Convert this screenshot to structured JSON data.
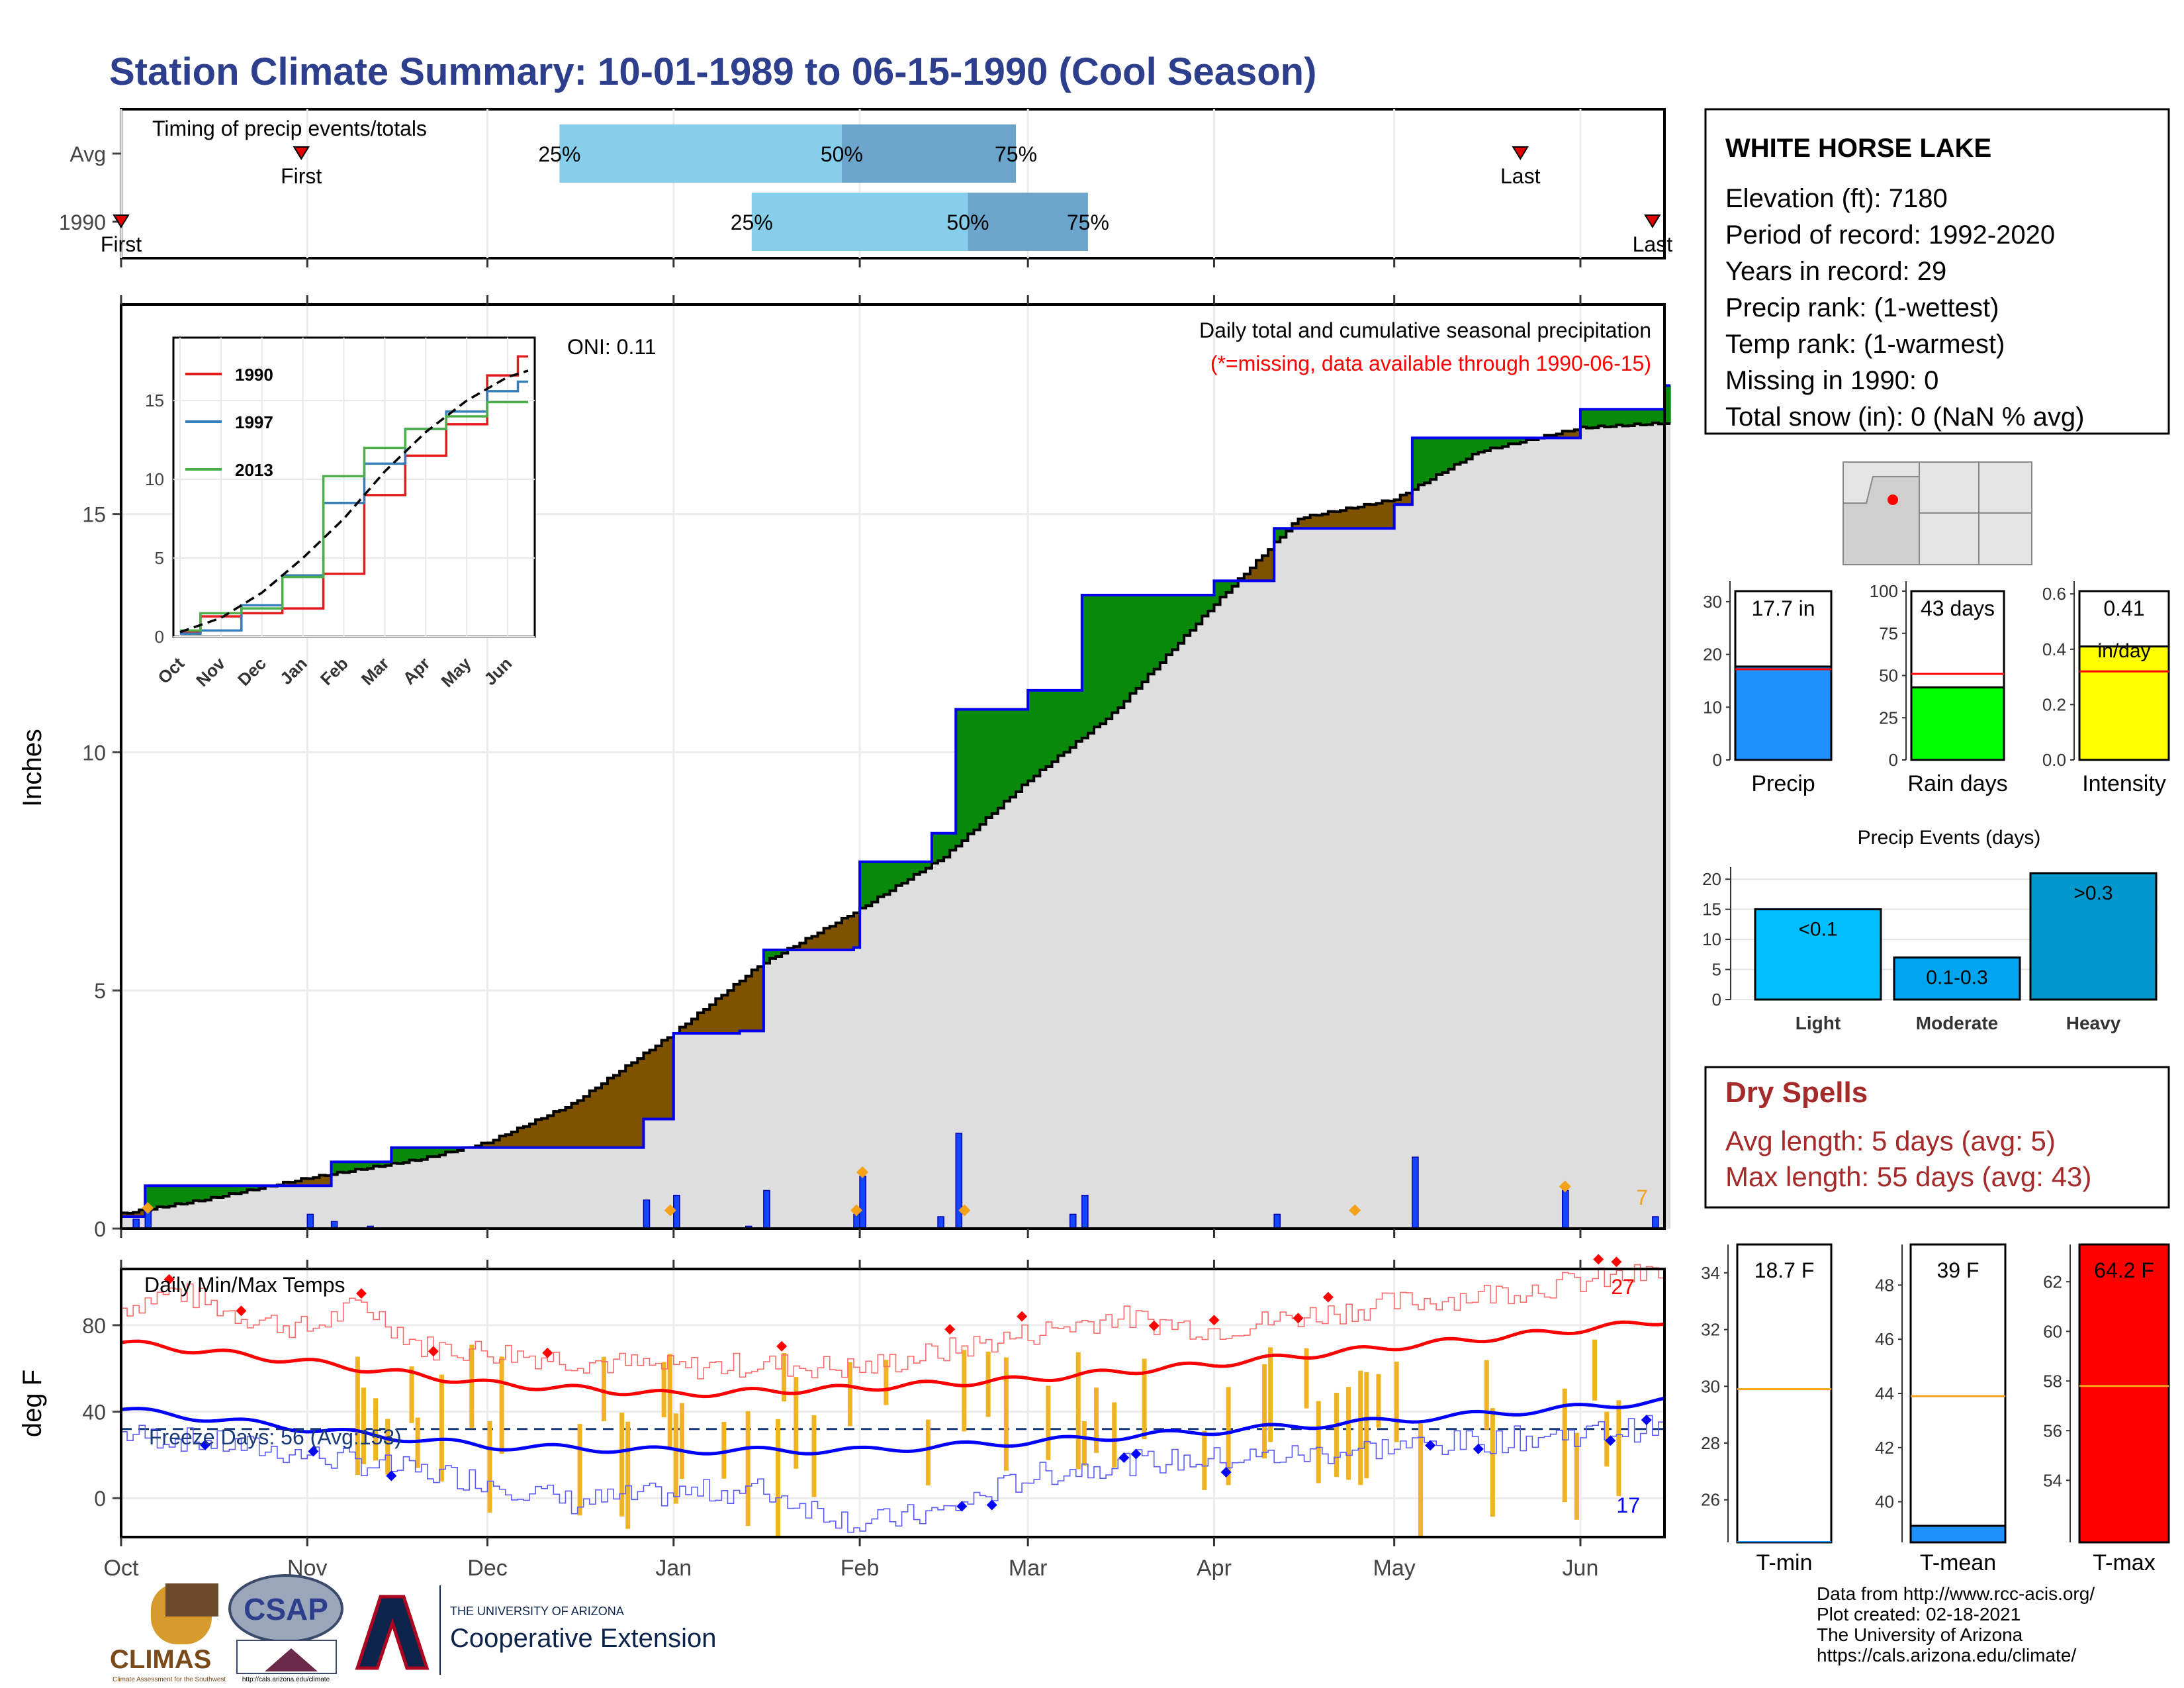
{
  "title": "Station Climate Summary: 10-01-1989 to 06-15-1990 (Cool Season)",
  "colors": {
    "title": "#2d3f8c",
    "cum_fill": "#dedede",
    "deficit": "#7f5200",
    "surplus": "#0a8a0a",
    "avg_line": "#0000ee",
    "bar_blue": "#1246ff",
    "marker_orange": "#f3a21a",
    "tmax": "#ff0000",
    "tmin": "#0000ff",
    "freeze_bar": "#f0b323",
    "dryspell": "#a52a2a",
    "q_light": "#87ceeb",
    "q_dark": "#6ca5cc"
  },
  "timing": {
    "label": "Timing of precip events/totals",
    "rows": [
      {
        "name": "Avg",
        "q25": "25%",
        "q50": "50%",
        "q75": "75%",
        "first": "First",
        "last": "Last"
      },
      {
        "name": "1990",
        "q25": "25%",
        "q50": "50%",
        "q75": "75%",
        "first": "First",
        "last": "Last"
      }
    ],
    "avg_dates": {
      "first": "1989-10-31",
      "q25": "1989-12-13",
      "q50": "1990-01-29",
      "q75": "1990-02-27",
      "last": "1990-05-22"
    },
    "year_dates": {
      "first": "1989-10-01",
      "q25": "1990-01-14",
      "q50": "1990-02-19",
      "q75": "1990-03-11",
      "last": "1990-06-13"
    }
  },
  "x_axis": {
    "ticks": [
      "Oct",
      "Nov",
      "Dec",
      "Jan",
      "Feb",
      "Mar",
      "Apr",
      "May",
      "Jun"
    ],
    "tick_dates": [
      "1989-10-01",
      "1989-11-01",
      "1989-12-01",
      "1990-01-01",
      "1990-02-01",
      "1990-03-01",
      "1990-04-01",
      "1990-05-01",
      "1990-06-01"
    ],
    "start": "1989-10-01",
    "end": "1990-06-15"
  },
  "precip_panel": {
    "ylabel": "Inches",
    "yticks": [
      "0",
      "5",
      "10",
      "15"
    ],
    "ylim": [
      0,
      19.4
    ],
    "title": "Daily total and cumulative seasonal precipitation",
    "subtitle": "(*=missing, data available through 1990-06-15)",
    "oni": "ONI: 0.11",
    "marker_count": "7"
  },
  "inset": {
    "yticks": [
      "0",
      "5",
      "10",
      "15"
    ],
    "xticks": [
      "Oct",
      "Nov",
      "Dec",
      "Jan",
      "Feb",
      "Mar",
      "Apr",
      "May",
      "Jun"
    ],
    "legend": [
      {
        "name": "1990",
        "color": "#e41a1c"
      },
      {
        "name": "1997",
        "color": "#377eb8"
      },
      {
        "name": "2013",
        "color": "#4daf4a"
      }
    ]
  },
  "station": {
    "name": "WHITE HORSE LAKE",
    "lines": [
      "Elevation (ft): 7180",
      "Period of record: 1992-2020",
      "Years in record: 29",
      "Precip rank:  (1-wettest)",
      "Temp rank:  (1-warmest)",
      "Missing in 1990: 0",
      "Total snow (in): 0 (NaN % avg)"
    ]
  },
  "summary_bars": [
    {
      "label": "Precip",
      "value_text": "17.7 in",
      "value": 17.7,
      "avg": 17.2,
      "ymax": 32,
      "ticks": [
        "0",
        "10",
        "20",
        "30"
      ],
      "tickvals": [
        0,
        10,
        20,
        30
      ],
      "color": "#1e90ff"
    },
    {
      "label": "Rain days",
      "value_text": "43 days",
      "value": 43,
      "avg": 51,
      "ymax": 100,
      "ticks": [
        "0",
        "25",
        "50",
        "75",
        "100"
      ],
      "tickvals": [
        0,
        25,
        50,
        75,
        100
      ],
      "color": "#00ff00"
    },
    {
      "label": "Intensity",
      "value_text": "0.41",
      "value_text2": "in/day",
      "value": 0.41,
      "avg": 0.32,
      "ymax": 0.61,
      "ticks": [
        "0.0",
        "0.2",
        "0.4",
        "0.6"
      ],
      "tickvals": [
        0,
        0.2,
        0.4,
        0.6
      ],
      "color": "#ffff00"
    }
  ],
  "precip_events": {
    "title": "Precip Events (days)",
    "yticks": [
      "0",
      "5",
      "10",
      "15",
      "20"
    ],
    "ymax": 22,
    "bars": [
      {
        "label": "Light",
        "inner": "<0.1",
        "value": 15,
        "color": "#00bfff"
      },
      {
        "label": "Moderate",
        "inner": "0.1-0.3",
        "value": 7,
        "color": "#00a5f0"
      },
      {
        "label": "Heavy",
        "inner": ">0.3",
        "value": 21,
        "color": "#0098cc"
      }
    ]
  },
  "dry_spells": {
    "title": "Dry Spells",
    "avg_line": "Avg length: 5 days (avg: 5)",
    "max_line": "Max length: 55 days (avg: 43)"
  },
  "temp_panel": {
    "ylabel": "deg F",
    "yticks": [
      "0",
      "40",
      "80"
    ],
    "ylim": [
      -18,
      106
    ],
    "label": "Daily Min/Max Temps",
    "freeze": "Freeze Days: 56 (Avg:153)",
    "max_count": "27",
    "min_count": "17",
    "freeze_line": 32
  },
  "temp_bars": [
    {
      "label": "T-min",
      "value_text": "18.7 F",
      "value": 18.7,
      "avg": 29.9,
      "ylim": [
        24.5,
        35
      ],
      "ticks": [
        "26",
        "28",
        "30",
        "32",
        "34"
      ],
      "tickvals": [
        26,
        28,
        30,
        32,
        34
      ],
      "color": "#1e90ff"
    },
    {
      "label": "T-mean",
      "value_text": "39 F",
      "value": 39,
      "avg": 43.9,
      "ylim": [
        38.5,
        49.5
      ],
      "ticks": [
        "40",
        "42",
        "44",
        "46",
        "48"
      ],
      "tickvals": [
        40,
        42,
        44,
        46,
        48
      ],
      "color": "#1e90ff"
    },
    {
      "label": "T-max",
      "value_text": "64.2 F",
      "value": 64.2,
      "avg": 57.8,
      "ylim": [
        51.5,
        63.5
      ],
      "ticks": [
        "54",
        "56",
        "58",
        "60",
        "62"
      ],
      "tickvals": [
        54,
        56,
        58,
        60,
        62
      ],
      "color": "#ff0000"
    }
  ],
  "credits": [
    "Data from http://www.rcc-acis.org/",
    "Plot created: 02-18-2021",
    "The University of Arizona",
    "https://cals.arizona.edu/climate/"
  ],
  "logos": {
    "climas": "CLIMAS",
    "climas_sub": "Climate Assessment for the Southwest",
    "csap": "CSAP",
    "csap_url": "http://cals.arizona.edu/climate",
    "ua_line1": "THE UNIVERSITY OF ARIZONA",
    "ua_line2": "Cooperative Extension"
  },
  "chart_data": [
    {
      "type": "area",
      "name": "cumulative precipitation",
      "avg_cumulative": [
        [
          "1989-10-01",
          0.3
        ],
        [
          "1989-10-15",
          0.6
        ],
        [
          "1989-11-01",
          1.05
        ],
        [
          "1989-11-20",
          1.45
        ],
        [
          "1989-12-01",
          1.8
        ],
        [
          "1989-12-15",
          2.6
        ],
        [
          "1990-01-01",
          4.1
        ],
        [
          "1990-01-15",
          5.5
        ],
        [
          "1990-02-01",
          6.7
        ],
        [
          "1990-02-15",
          7.8
        ],
        [
          "1990-03-01",
          9.4
        ],
        [
          "1990-03-15",
          10.8
        ],
        [
          "1990-04-01",
          13.1
        ],
        [
          "1990-04-15",
          14.9
        ],
        [
          "1990-05-01",
          15.3
        ],
        [
          "1990-05-15",
          16.3
        ],
        [
          "1990-06-01",
          16.8
        ],
        [
          "1990-06-15",
          16.9
        ]
      ],
      "year_cumulative": [
        [
          "1989-10-01",
          0.25
        ],
        [
          "1989-10-05",
          0.9
        ],
        [
          "1989-11-01",
          0.9
        ],
        [
          "1989-11-05",
          1.4
        ],
        [
          "1989-11-15",
          1.7
        ],
        [
          "1989-12-25",
          1.7
        ],
        [
          "1989-12-27",
          2.3
        ],
        [
          "1990-01-01",
          4.1
        ],
        [
          "1990-01-12",
          4.15
        ],
        [
          "1990-01-16",
          5.85
        ],
        [
          "1990-01-31",
          5.9
        ],
        [
          "1990-02-01",
          7.7
        ],
        [
          "1990-02-13",
          8.3
        ],
        [
          "1990-02-17",
          10.9
        ],
        [
          "1990-03-01",
          11.3
        ],
        [
          "1990-03-10",
          13.3
        ],
        [
          "1990-04-01",
          13.6
        ],
        [
          "1990-04-11",
          14.7
        ],
        [
          "1990-05-01",
          15.2
        ],
        [
          "1990-05-04",
          16.6
        ],
        [
          "1990-05-29",
          16.6
        ],
        [
          "1990-06-01",
          17.2
        ],
        [
          "1990-06-15",
          17.7
        ]
      ],
      "daily_bars": [
        [
          "1989-10-03",
          0.2
        ],
        [
          "1989-10-05",
          0.35
        ],
        [
          "1989-11-01",
          0.3
        ],
        [
          "1989-11-05",
          0.15
        ],
        [
          "1989-11-11",
          0.05
        ],
        [
          "1989-12-27",
          0.6
        ],
        [
          "1990-01-01",
          0.7
        ],
        [
          "1990-01-13",
          0.05
        ],
        [
          "1990-01-16",
          0.8
        ],
        [
          "1990-01-31",
          0.3
        ],
        [
          "1990-02-01",
          1.1
        ],
        [
          "1990-02-14",
          0.25
        ],
        [
          "1990-02-17",
          2.0
        ],
        [
          "1990-03-08",
          0.3
        ],
        [
          "1990-03-10",
          0.7
        ],
        [
          "1990-04-11",
          0.3
        ],
        [
          "1990-05-04",
          1.5
        ],
        [
          "1990-05-29",
          0.8
        ],
        [
          "1990-06-13",
          0.25
        ]
      ],
      "marker_dates": [
        "1989-10-05",
        "1989-12-31",
        "1990-01-31",
        "1990-02-01",
        "1990-02-18",
        "1990-04-24",
        "1990-05-29"
      ]
    },
    {
      "type": "line",
      "name": "inset cumulative comparison",
      "series": [
        {
          "name": "1990",
          "points": [
            [
              0,
              0.3
            ],
            [
              1,
              1.3
            ],
            [
              2,
              1.5
            ],
            [
              3,
              1.8
            ],
            [
              4,
              4.0
            ],
            [
              5,
              9.0
            ],
            [
              6,
              11.5
            ],
            [
              7,
              13.5
            ],
            [
              8,
              16.6
            ],
            [
              8.5,
              17.8
            ]
          ]
        },
        {
          "name": "1997",
          "points": [
            [
              0,
              0.2
            ],
            [
              1,
              0.4
            ],
            [
              2,
              2.0
            ],
            [
              3,
              3.9
            ],
            [
              4,
              8.5
            ],
            [
              5,
              11.0
            ],
            [
              6,
              13.2
            ],
            [
              7,
              14.3
            ],
            [
              8,
              15.6
            ],
            [
              8.5,
              16.2
            ]
          ]
        },
        {
          "name": "2013",
          "points": [
            [
              0,
              0.4
            ],
            [
              1,
              1.5
            ],
            [
              2,
              1.8
            ],
            [
              3,
              3.8
            ],
            [
              4,
              10.2
            ],
            [
              5,
              12.0
            ],
            [
              6,
              13.2
            ],
            [
              7,
              14.0
            ],
            [
              8,
              14.9
            ],
            [
              8.5,
              14.9
            ]
          ]
        },
        {
          "name": "avg",
          "points": [
            [
              0,
              0.3
            ],
            [
              1,
              1.2
            ],
            [
              2,
              2.8
            ],
            [
              3,
              5.0
            ],
            [
              4,
              7.5
            ],
            [
              5,
              10.5
            ],
            [
              6,
              13.0
            ],
            [
              7,
              15.0
            ],
            [
              8,
              16.5
            ],
            [
              8.5,
              16.9
            ]
          ]
        }
      ]
    },
    {
      "type": "line",
      "name": "daily temperatures",
      "tmax_avg": [
        [
          "1989-10-01",
          72
        ],
        [
          "1989-11-01",
          63
        ],
        [
          "1989-12-01",
          53
        ],
        [
          "1990-01-01",
          48
        ],
        [
          "1990-02-01",
          51
        ],
        [
          "1990-03-01",
          55
        ],
        [
          "1990-04-01",
          62
        ],
        [
          "1990-05-01",
          70
        ],
        [
          "1990-06-01",
          78
        ],
        [
          "1990-06-15",
          82
        ]
      ],
      "tmin_avg": [
        [
          "1989-10-01",
          41
        ],
        [
          "1989-11-01",
          32
        ],
        [
          "1989-12-01",
          24
        ],
        [
          "1990-01-01",
          22
        ],
        [
          "1990-02-01",
          22
        ],
        [
          "1990-03-01",
          26
        ],
        [
          "1990-04-01",
          31
        ],
        [
          "1990-05-01",
          36
        ],
        [
          "1990-06-01",
          42
        ],
        [
          "1990-06-15",
          45
        ]
      ],
      "tmax_daily": [
        [
          "1989-10-01",
          88
        ],
        [
          "1989-10-10",
          96
        ],
        [
          "1989-10-20",
          85
        ],
        [
          "1989-11-01",
          78
        ],
        [
          "1989-11-10",
          90
        ],
        [
          "1989-11-20",
          70
        ],
        [
          "1989-12-01",
          68
        ],
        [
          "1989-12-15",
          64
        ],
        [
          "1990-01-01",
          60
        ],
        [
          "1990-01-15",
          62
        ],
        [
          "1990-02-01",
          60
        ],
        [
          "1990-02-15",
          68
        ],
        [
          "1990-03-01",
          76
        ],
        [
          "1990-03-15",
          84
        ],
        [
          "1990-04-01",
          78
        ],
        [
          "1990-04-15",
          84
        ],
        [
          "1990-05-01",
          90
        ],
        [
          "1990-05-15",
          94
        ],
        [
          "1990-06-01",
          100
        ],
        [
          "1990-06-15",
          104
        ]
      ],
      "tmin_daily": [
        [
          "1989-10-01",
          30
        ],
        [
          "1989-10-15",
          26
        ],
        [
          "1989-11-01",
          20
        ],
        [
          "1989-11-15",
          14
        ],
        [
          "1989-12-01",
          8
        ],
        [
          "1989-12-15",
          -2
        ],
        [
          "1990-01-01",
          2
        ],
        [
          "1990-01-15",
          4
        ],
        [
          "1990-02-01",
          -12
        ],
        [
          "1990-02-15",
          -6
        ],
        [
          "1990-03-01",
          10
        ],
        [
          "1990-03-15",
          16
        ],
        [
          "1990-04-01",
          18
        ],
        [
          "1990-04-15",
          20
        ],
        [
          "1990-05-01",
          24
        ],
        [
          "1990-05-15",
          26
        ],
        [
          "1990-06-01",
          30
        ],
        [
          "1990-06-15",
          33
        ]
      ]
    }
  ]
}
